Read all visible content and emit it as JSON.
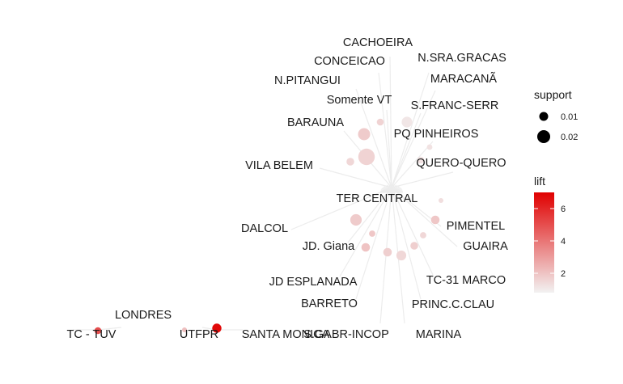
{
  "graph": {
    "nodes": [
      {
        "id": "cachoeira",
        "label": "CACHOEIRA"
      },
      {
        "id": "conceicao",
        "label": "CONCEICAO"
      },
      {
        "id": "n-sra-gracas",
        "label": "N.SRA.GRACAS"
      },
      {
        "id": "n-pitangui",
        "label": "N.PITANGUI"
      },
      {
        "id": "maracana",
        "label": "MARACANÃ"
      },
      {
        "id": "somente-vt",
        "label": "Somente VT"
      },
      {
        "id": "s-franc-serr",
        "label": "S.FRANC-SERR"
      },
      {
        "id": "barauna",
        "label": "BARAUNA"
      },
      {
        "id": "pq-pinheiros",
        "label": "PQ PINHEIROS"
      },
      {
        "id": "vila-belem",
        "label": "VILA BELEM"
      },
      {
        "id": "quero-quero",
        "label": "QUERO-QUERO"
      },
      {
        "id": "ter-central",
        "label": "TER CENTRAL"
      },
      {
        "id": "dalcol",
        "label": "DALCOL"
      },
      {
        "id": "pimentel",
        "label": "PIMENTEL"
      },
      {
        "id": "jd-giana",
        "label": "JD. Giana"
      },
      {
        "id": "guaira",
        "label": "GUAIRA"
      },
      {
        "id": "jd-esplanada",
        "label": "JD ESPLANADA"
      },
      {
        "id": "tc-31-marco",
        "label": "TC-31 MARCO"
      },
      {
        "id": "barreto",
        "label": "BARRETO"
      },
      {
        "id": "princ-c-clau",
        "label": "PRINC.C.CLAU"
      },
      {
        "id": "londres",
        "label": "LONDRES"
      },
      {
        "id": "tc-tuv",
        "label": "TC - TUV"
      },
      {
        "id": "utfpr",
        "label": "UTFPR"
      },
      {
        "id": "santa-monica",
        "label": "SANTA MONICA"
      },
      {
        "id": "s-gabr-incop",
        "label": "S.GABR-INCOP"
      },
      {
        "id": "marina",
        "label": "MARINA"
      }
    ],
    "rules": [
      {
        "id": "r1",
        "support": 0.01,
        "lift": 1.3
      },
      {
        "id": "r2",
        "support": 0.011,
        "lift": 1.6
      },
      {
        "id": "r3",
        "support": 0.016,
        "lift": 1.1
      },
      {
        "id": "r4",
        "support": 0.012,
        "lift": 1.5
      },
      {
        "id": "r5",
        "support": 0.018,
        "lift": 1.8
      },
      {
        "id": "r6",
        "support": 0.024,
        "lift": 1.6
      },
      {
        "id": "r7",
        "support": 0.009,
        "lift": 1.2
      },
      {
        "id": "r8",
        "support": 0.011,
        "lift": 1.2
      },
      {
        "id": "r9",
        "support": 0.008,
        "lift": 1.3
      },
      {
        "id": "r10",
        "support": 0.013,
        "lift": 1.9
      },
      {
        "id": "r11",
        "support": 0.017,
        "lift": 1.8
      },
      {
        "id": "r12",
        "support": 0.01,
        "lift": 1.9
      },
      {
        "id": "r13",
        "support": 0.01,
        "lift": 1.5
      },
      {
        "id": "r14",
        "support": 0.012,
        "lift": 1.7
      },
      {
        "id": "r15",
        "support": 0.013,
        "lift": 2.0
      },
      {
        "id": "r16",
        "support": 0.015,
        "lift": 1.5
      },
      {
        "id": "r17",
        "support": 0.013,
        "lift": 1.7
      },
      {
        "id": "r18",
        "support": 0.008,
        "lift": 2.1
      },
      {
        "id": "r19",
        "support": 0.011,
        "lift": 5.0
      },
      {
        "id": "r20",
        "support": 0.014,
        "lift": 6.8
      }
    ]
  },
  "legend": {
    "support_title": "support",
    "support_items": [
      {
        "label": "0.01",
        "value": 0.01
      },
      {
        "label": "0.02",
        "value": 0.02
      }
    ],
    "lift_title": "lift",
    "lift_ticks": [
      {
        "label": "6",
        "value": 6
      },
      {
        "label": "4",
        "value": 4
      },
      {
        "label": "2",
        "value": 2
      }
    ],
    "lift_range": [
      0.8,
      7
    ],
    "color_low": "#f2f2f2",
    "color_high": "#e00000"
  }
}
